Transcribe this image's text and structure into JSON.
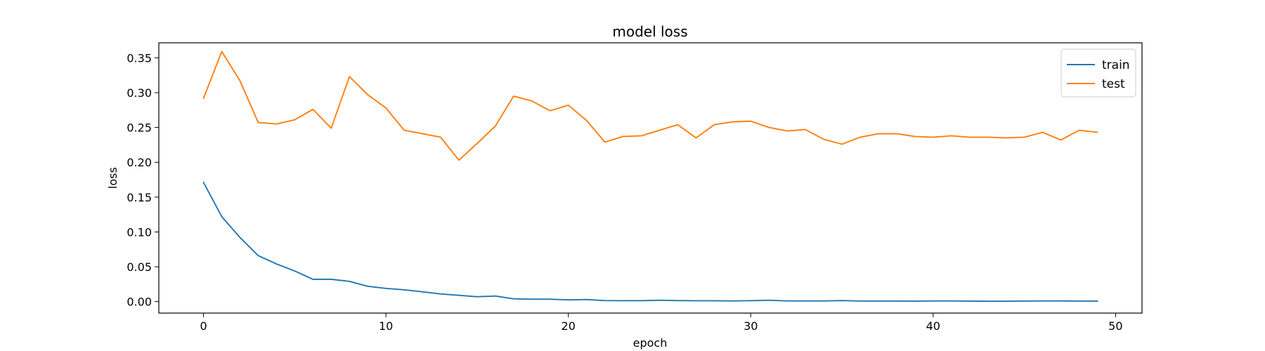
{
  "chart_data": {
    "type": "line",
    "title": "model loss",
    "xlabel": "epoch",
    "ylabel": "loss",
    "xlim": [
      -2.45,
      51.45
    ],
    "ylim": [
      -0.0165,
      0.3715
    ],
    "xticks": [
      0,
      10,
      20,
      30,
      40,
      50
    ],
    "xtick_labels": [
      "0",
      "10",
      "20",
      "30",
      "40",
      "50"
    ],
    "yticks": [
      0.0,
      0.05,
      0.1,
      0.15,
      0.2,
      0.25,
      0.3,
      0.35
    ],
    "ytick_labels": [
      "0.00",
      "0.05",
      "0.10",
      "0.15",
      "0.20",
      "0.25",
      "0.30",
      "0.35"
    ],
    "grid": false,
    "legend_position": "top-right",
    "x": [
      0,
      1,
      2,
      3,
      4,
      5,
      6,
      7,
      8,
      9,
      10,
      11,
      12,
      13,
      14,
      15,
      16,
      17,
      18,
      19,
      20,
      21,
      22,
      23,
      24,
      25,
      26,
      27,
      28,
      29,
      30,
      31,
      32,
      33,
      34,
      35,
      36,
      37,
      38,
      39,
      40,
      41,
      42,
      43,
      44,
      45,
      46,
      47,
      48,
      49
    ],
    "series": [
      {
        "name": "train",
        "color": "#1f77b4",
        "values": [
          0.171,
          0.122,
          0.092,
          0.066,
          0.054,
          0.044,
          0.032,
          0.032,
          0.029,
          0.022,
          0.019,
          0.017,
          0.014,
          0.011,
          0.009,
          0.007,
          0.008,
          0.004,
          0.0035,
          0.0035,
          0.0025,
          0.003,
          0.0015,
          0.0013,
          0.0013,
          0.002,
          0.0015,
          0.0012,
          0.0012,
          0.001,
          0.0013,
          0.002,
          0.001,
          0.001,
          0.001,
          0.0015,
          0.0008,
          0.0008,
          0.0008,
          0.0007,
          0.001,
          0.001,
          0.0007,
          0.0006,
          0.0006,
          0.0008,
          0.001,
          0.001,
          0.0008,
          0.0007
        ]
      },
      {
        "name": "test",
        "color": "#ff7f0e",
        "values": [
          0.292,
          0.359,
          0.317,
          0.257,
          0.255,
          0.261,
          0.276,
          0.249,
          0.323,
          0.297,
          0.278,
          0.246,
          0.241,
          0.236,
          0.203,
          0.227,
          0.252,
          0.295,
          0.288,
          0.274,
          0.282,
          0.26,
          0.229,
          0.237,
          0.238,
          0.246,
          0.254,
          0.235,
          0.254,
          0.258,
          0.259,
          0.25,
          0.245,
          0.247,
          0.233,
          0.226,
          0.236,
          0.241,
          0.241,
          0.237,
          0.236,
          0.238,
          0.236,
          0.236,
          0.235,
          0.236,
          0.243,
          0.232,
          0.246,
          0.243
        ]
      }
    ]
  }
}
